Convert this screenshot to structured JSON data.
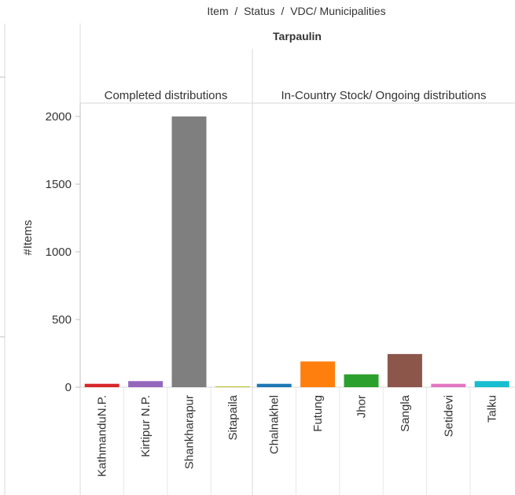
{
  "chart_data": {
    "type": "bar",
    "header": "Item  /  Status  /  VDC/ Municipalities",
    "item": "Tarpaulin",
    "ylabel": "#Items",
    "ylim": [
      0,
      2100
    ],
    "yticks": [
      0,
      500,
      1000,
      1500,
      2000
    ],
    "grid": false,
    "groups": [
      {
        "label": "Completed distributions",
        "categories": [
          "KathmanduN.P.",
          "Kirtipur N.P.",
          "Shankharapur",
          "Sitapaila"
        ],
        "values": [
          25,
          45,
          2000,
          3
        ],
        "colors": [
          "#d62728",
          "#9467bd",
          "#7f7f7f",
          "#bcbd22"
        ]
      },
      {
        "label": "In-Country Stock/ Ongoing distributions",
        "categories": [
          "Chalnakhel",
          "Futung",
          "Jhor",
          "Sangla",
          "Setidevi",
          "Talku"
        ],
        "values": [
          25,
          190,
          95,
          245,
          25,
          45
        ],
        "colors": [
          "#1f77b4",
          "#ff7f0e",
          "#2ca02c",
          "#8c564b",
          "#e377c2",
          "#17becf"
        ]
      }
    ]
  }
}
